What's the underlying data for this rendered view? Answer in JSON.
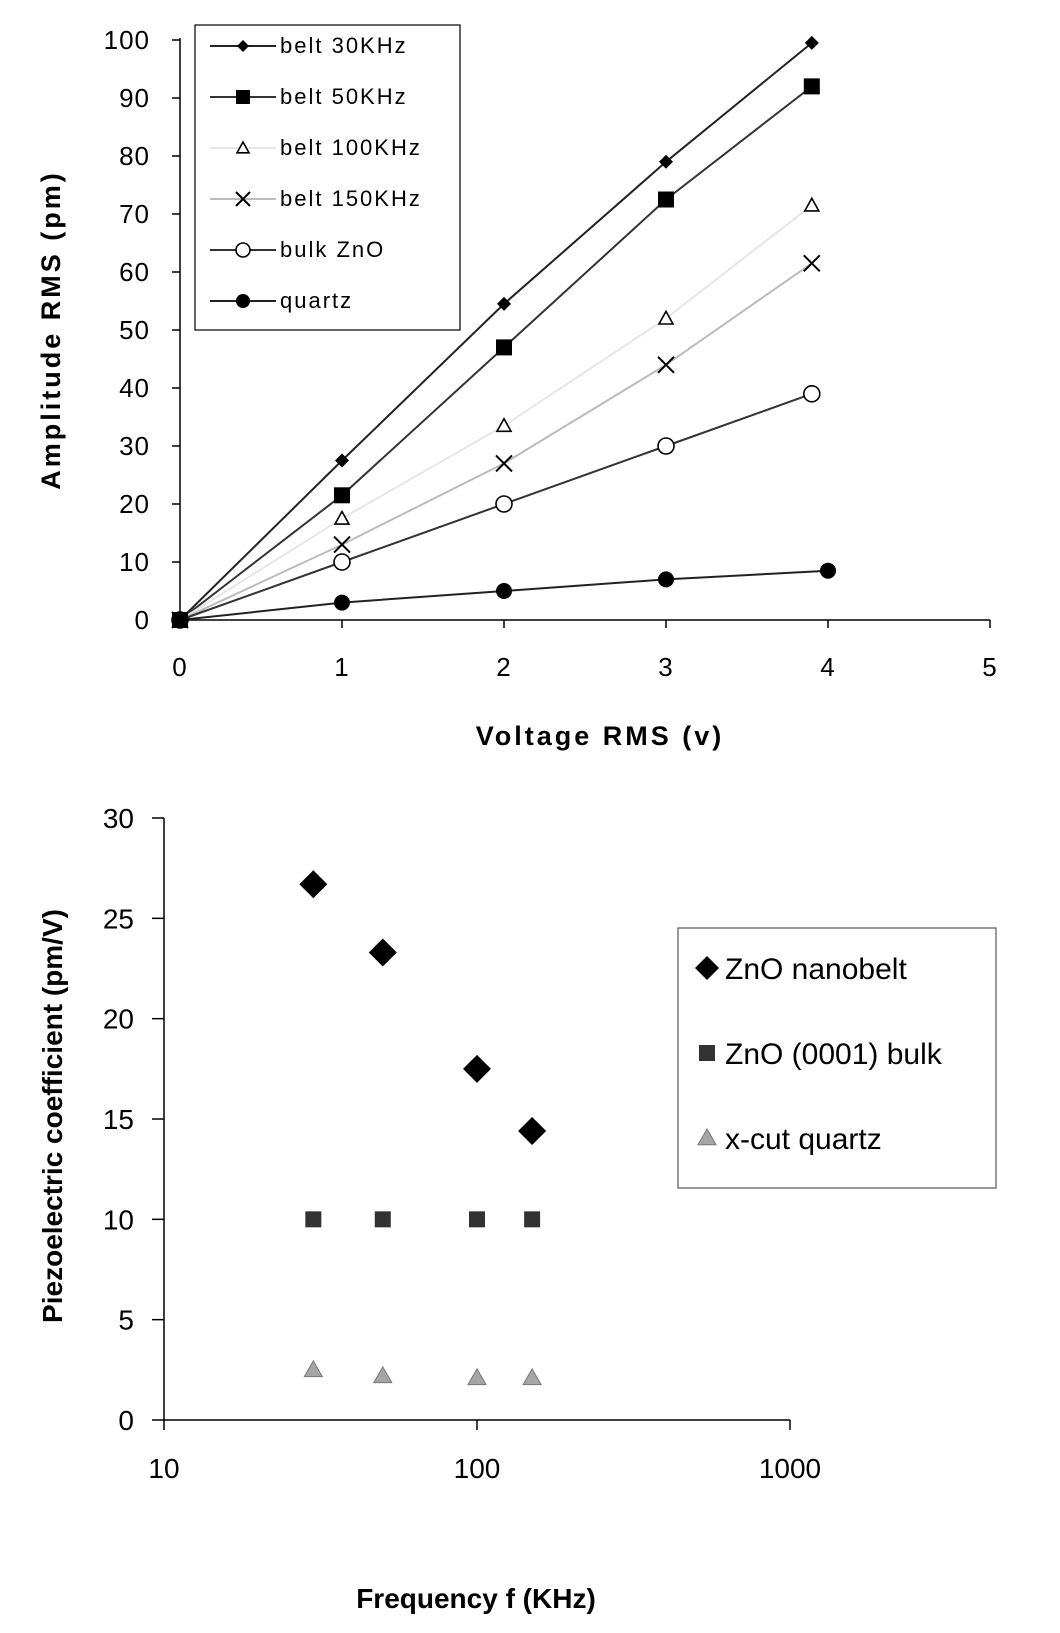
{
  "chart_data": [
    {
      "type": "line",
      "xlabel": "Voltage RMS (v)",
      "ylabel": "Amplitude RMS (pm)",
      "xlim": [
        0,
        5
      ],
      "ylim": [
        0,
        100
      ],
      "xticks": [
        "0",
        "1",
        "2",
        "3",
        "4",
        "5"
      ],
      "yticks": [
        "0",
        "10",
        "20",
        "30",
        "40",
        "50",
        "60",
        "70",
        "80",
        "90",
        "100"
      ],
      "grid": false,
      "legend_position": "top-left",
      "series": [
        {
          "name": "belt 30KHz",
          "marker": "filled-diamond",
          "line_color": "#222222",
          "x": [
            0,
            1,
            2,
            3,
            3.9
          ],
          "y": [
            0,
            27.5,
            54.5,
            79,
            99.5
          ]
        },
        {
          "name": "belt 50KHz",
          "marker": "filled-square",
          "line_color": "#333333",
          "x": [
            0,
            1,
            2,
            3,
            3.9
          ],
          "y": [
            0,
            21.5,
            47,
            72.5,
            92
          ]
        },
        {
          "name": "belt 100KHz",
          "marker": "open-triangle",
          "line_color": "#e6e6e6",
          "x": [
            0,
            1,
            2,
            3,
            3.9
          ],
          "y": [
            0,
            17.5,
            33.5,
            52,
            71.5
          ]
        },
        {
          "name": "belt 150KHz",
          "marker": "x",
          "line_color": "#bbbbbb",
          "x": [
            0,
            1,
            2,
            3,
            3.9
          ],
          "y": [
            0,
            13,
            27,
            44,
            61.5
          ]
        },
        {
          "name": "bulk ZnO",
          "marker": "open-circle",
          "line_color": "#333333",
          "x": [
            0,
            1,
            2,
            3,
            3.9
          ],
          "y": [
            0,
            10,
            20,
            30,
            39
          ]
        },
        {
          "name": "quartz",
          "marker": "filled-circle",
          "line_color": "#222222",
          "x": [
            0,
            1,
            2,
            3,
            4
          ],
          "y": [
            0,
            3,
            5,
            7,
            8.5
          ]
        }
      ]
    },
    {
      "type": "scatter",
      "xlabel": "Frequency f (KHz)",
      "ylabel": "Piezoelectric coefficient (pm/V)",
      "xscale": "log",
      "xlim": [
        10,
        1000
      ],
      "ylim": [
        0,
        30
      ],
      "xticks": [
        "10",
        "100",
        "1000"
      ],
      "yticks": [
        "0",
        "5",
        "10",
        "15",
        "20",
        "25",
        "30"
      ],
      "grid": false,
      "legend_position": "right",
      "series": [
        {
          "name": "ZnO nanobelt",
          "marker": "diamond",
          "color": "#000000",
          "x": [
            30,
            50,
            100,
            150
          ],
          "y": [
            26.7,
            23.3,
            17.5,
            14.4
          ]
        },
        {
          "name": "ZnO (0001) bulk",
          "marker": "square",
          "color": "#333333",
          "x": [
            30,
            50,
            100,
            150
          ],
          "y": [
            10,
            10,
            10,
            10
          ]
        },
        {
          "name": "x-cut quartz",
          "marker": "triangle",
          "color": "#a6a6a6",
          "x": [
            30,
            50,
            100,
            150
          ],
          "y": [
            2.5,
            2.2,
            2.1,
            2.1
          ]
        }
      ]
    }
  ]
}
